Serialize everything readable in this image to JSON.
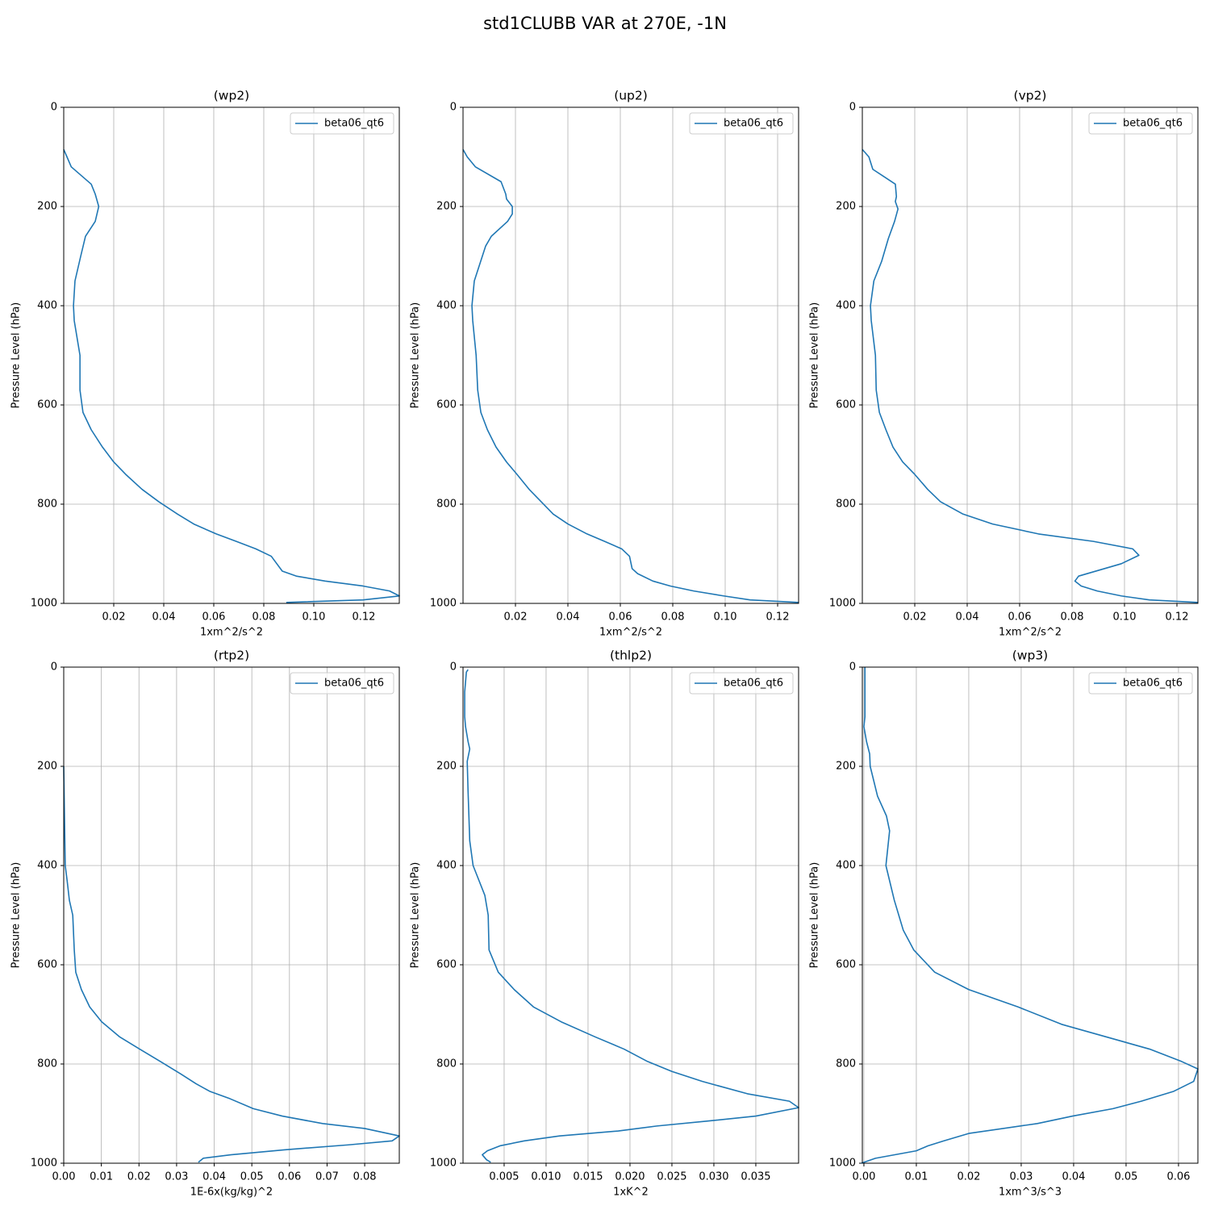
{
  "title": "std1CLUBB VAR at 270E, -1N",
  "chart_data": [
    {
      "type": "line",
      "title": "(wp2)",
      "xlabel": "1xm^2/s^2",
      "ylabel": "Pressure Level (hPa)",
      "xlim": [
        0,
        0.1342
      ],
      "xticks": [
        0.02,
        0.04,
        0.06,
        0.08,
        {
          "value": 0.1,
          "label": "0.10"
        },
        0.12
      ],
      "ylim": [
        1000,
        0
      ],
      "yticks": [
        0,
        200,
        400,
        600,
        800,
        1000
      ],
      "grid": true,
      "legend": "upper right",
      "y": [
        85,
        100,
        120,
        155,
        175,
        200,
        230,
        260,
        300,
        350,
        400,
        430,
        500,
        570,
        615,
        650,
        685,
        715,
        740,
        770,
        795,
        820,
        840,
        860,
        875,
        890,
        905,
        935,
        945,
        955,
        965,
        975,
        985,
        993,
        998
      ],
      "series": [
        {
          "name": "beta06_qt6",
          "color": "#1f77b4",
          "values": [
            0,
            0.0013,
            0.003,
            0.011,
            0.0126,
            0.014,
            0.0126,
            0.0087,
            0.0068,
            0.0045,
            0.0039,
            0.0042,
            0.0065,
            0.0065,
            0.0077,
            0.011,
            0.0155,
            0.02,
            0.0248,
            0.0313,
            0.038,
            0.0455,
            0.052,
            0.061,
            0.069,
            0.0768,
            0.083,
            0.0874,
            0.093,
            0.1045,
            0.1197,
            0.1303,
            0.1342,
            0.1197,
            0.089
          ]
        }
      ]
    },
    {
      "type": "line",
      "title": "(up2)",
      "xlabel": "1xm^2/s^2",
      "ylabel": "Pressure Level (hPa)",
      "xlim": [
        0,
        0.128
      ],
      "xticks": [
        0.02,
        0.04,
        0.06,
        0.08,
        {
          "value": 0.1,
          "label": "0.10"
        },
        0.12
      ],
      "ylim": [
        1000,
        0
      ],
      "yticks": [
        0,
        200,
        400,
        600,
        800,
        1000
      ],
      "grid": true,
      "legend": "upper right",
      "y": [
        85,
        100,
        120,
        150,
        175,
        185,
        200,
        215,
        230,
        260,
        280,
        350,
        400,
        430,
        500,
        570,
        615,
        650,
        685,
        715,
        740,
        770,
        795,
        820,
        840,
        860,
        875,
        890,
        905,
        930,
        940,
        955,
        965,
        975,
        985,
        993,
        998
      ],
      "series": [
        {
          "name": "beta06_qt6",
          "color": "#1f77b4",
          "values": [
            0,
            0.0016,
            0.0047,
            0.0145,
            0.0163,
            0.0166,
            0.0188,
            0.0188,
            0.017,
            0.0108,
            0.0086,
            0.0043,
            0.0034,
            0.0037,
            0.005,
            0.0056,
            0.0068,
            0.0093,
            0.0126,
            0.0166,
            0.0206,
            0.0252,
            0.0298,
            0.0344,
            0.04,
            0.0473,
            0.054,
            0.0605,
            0.0635,
            0.0645,
            0.0666,
            0.0724,
            0.0791,
            0.088,
            0.0994,
            0.1095,
            0.128
          ]
        }
      ]
    },
    {
      "type": "line",
      "title": "(vp2)",
      "xlabel": "1xm^2/s^2",
      "ylabel": "Pressure Level (hPa)",
      "xlim": [
        0,
        0.128
      ],
      "xticks": [
        0.02,
        0.04,
        0.06,
        0.08,
        {
          "value": 0.1,
          "label": "0.10"
        },
        0.12
      ],
      "ylim": [
        1000,
        0
      ],
      "yticks": [
        0,
        200,
        400,
        600,
        800,
        1000
      ],
      "grid": true,
      "legend": "upper right",
      "y": [
        85,
        100,
        125,
        140,
        155,
        180,
        190,
        205,
        230,
        265,
        310,
        350,
        400,
        430,
        500,
        570,
        615,
        650,
        685,
        715,
        740,
        770,
        795,
        820,
        840,
        860,
        875,
        890,
        903,
        920,
        945,
        955,
        965,
        975,
        985,
        993,
        998
      ],
      "series": [
        {
          "name": "beta06_qt6",
          "color": "#1f77b4",
          "values": [
            0,
            0.0025,
            0.004,
            0.0083,
            0.0126,
            0.013,
            0.0126,
            0.0136,
            0.0123,
            0.0099,
            0.0074,
            0.0044,
            0.0031,
            0.0034,
            0.005,
            0.0053,
            0.0065,
            0.009,
            0.0117,
            0.0154,
            0.02,
            0.0249,
            0.0298,
            0.0384,
            0.0497,
            0.0672,
            0.0881,
            0.1031,
            0.1055,
            0.0988,
            0.0825,
            0.0811,
            0.0835,
            0.0896,
            0.0988,
            0.1095,
            0.128
          ]
        }
      ]
    },
    {
      "type": "line",
      "title": "(rtp2)",
      "xlabel": "1E-6x(kg/kg)^2",
      "ylabel": "Pressure Level (hPa)",
      "xlim": [
        0,
        0.0892
      ],
      "xticks": [
        {
          "value": 0,
          "label": "0.00"
        },
        0.01,
        0.02,
        0.03,
        0.04,
        0.05,
        0.06,
        0.07,
        0.08
      ],
      "ylim": [
        1000,
        0
      ],
      "yticks": [
        0,
        200,
        400,
        600,
        800,
        1000
      ],
      "grid": true,
      "legend": "upper right",
      "y": [
        200,
        300,
        400,
        430,
        470,
        500,
        570,
        615,
        650,
        685,
        715,
        745,
        770,
        795,
        820,
        840,
        855,
        870,
        890,
        905,
        920,
        930,
        945,
        955,
        963,
        973,
        983,
        990,
        998
      ],
      "series": [
        {
          "name": "beta06_qt6",
          "color": "#1f77b4",
          "values": [
            0,
            0.0002,
            0.0004,
            0.0009,
            0.0015,
            0.0024,
            0.0028,
            0.0032,
            0.0047,
            0.0069,
            0.0101,
            0.0148,
            0.0202,
            0.0257,
            0.0311,
            0.0352,
            0.0388,
            0.0442,
            0.0504,
            0.0581,
            0.0688,
            0.08,
            0.0892,
            0.0873,
            0.0757,
            0.0586,
            0.0444,
            0.0371,
            0.0358
          ]
        }
      ]
    },
    {
      "type": "line",
      "title": "(thlp2)",
      "xlabel": "1xK^2",
      "ylabel": "Pressure Level (hPa)",
      "xlim": [
        0.0001,
        0.0401
      ],
      "xticks": [
        0.005,
        {
          "value": 0.01,
          "label": "0.010"
        },
        0.015,
        {
          "value": 0.02,
          "label": "0.020"
        },
        0.025,
        {
          "value": 0.03,
          "label": "0.030"
        },
        0.035
      ],
      "ylim": [
        1000,
        0
      ],
      "yticks": [
        0,
        200,
        400,
        600,
        800,
        1000
      ],
      "grid": true,
      "legend": "upper right",
      "y": [
        5,
        10,
        50,
        100,
        120,
        150,
        165,
        190,
        250,
        300,
        350,
        400,
        460,
        500,
        570,
        615,
        650,
        685,
        715,
        745,
        770,
        795,
        815,
        835,
        860,
        875,
        888,
        905,
        915,
        925,
        935,
        945,
        955,
        965,
        975,
        983,
        993,
        998
      ],
      "series": [
        {
          "name": "beta06_qt6",
          "color": "#1f77b4",
          "values": [
            0.0007,
            0.0005,
            0.0003,
            0.0003,
            0.0004,
            0.0007,
            0.0009,
            0.0006,
            0.0007,
            0.0008,
            0.0009,
            0.0013,
            0.0027,
            0.0031,
            0.0032,
            0.0043,
            0.0062,
            0.0085,
            0.0118,
            0.0158,
            0.0193,
            0.0221,
            0.025,
            0.0286,
            0.034,
            0.039,
            0.0401,
            0.035,
            0.0293,
            0.0232,
            0.0186,
            0.0116,
            0.0074,
            0.0045,
            0.003,
            0.0024,
            0.0029,
            0.0034
          ]
        }
      ]
    },
    {
      "type": "line",
      "title": "(wp3)",
      "xlabel": "1xm^3/s^3",
      "ylabel": "Pressure Level (hPa)",
      "xlim": [
        -0.0003,
        0.0637
      ],
      "xticks": [
        {
          "value": 0,
          "label": "0.00"
        },
        0.01,
        0.02,
        0.03,
        0.04,
        0.05,
        0.06
      ],
      "ylim": [
        1000,
        0
      ],
      "yticks": [
        0,
        200,
        400,
        600,
        800,
        1000
      ],
      "grid": true,
      "legend": "upper right",
      "y": [
        0,
        100,
        120,
        150,
        175,
        200,
        260,
        300,
        330,
        400,
        470,
        530,
        570,
        615,
        650,
        685,
        720,
        770,
        795,
        810,
        835,
        855,
        875,
        890,
        905,
        920,
        940,
        955,
        965,
        975,
        990,
        1000
      ],
      "series": [
        {
          "name": "beta06_qt6",
          "color": "#1f77b4",
          "values": [
            0.0002,
            0.0002,
            0,
            0.0005,
            0.0011,
            0.0012,
            0.0026,
            0.0043,
            0.0049,
            0.0042,
            0.0058,
            0.0075,
            0.0095,
            0.0135,
            0.02,
            0.0294,
            0.0377,
            0.0545,
            0.0606,
            0.0637,
            0.0629,
            0.0591,
            0.0529,
            0.0475,
            0.0398,
            0.0331,
            0.02,
            0.0152,
            0.0122,
            0.01,
            0.0022,
            -0.0005
          ]
        }
      ]
    }
  ]
}
